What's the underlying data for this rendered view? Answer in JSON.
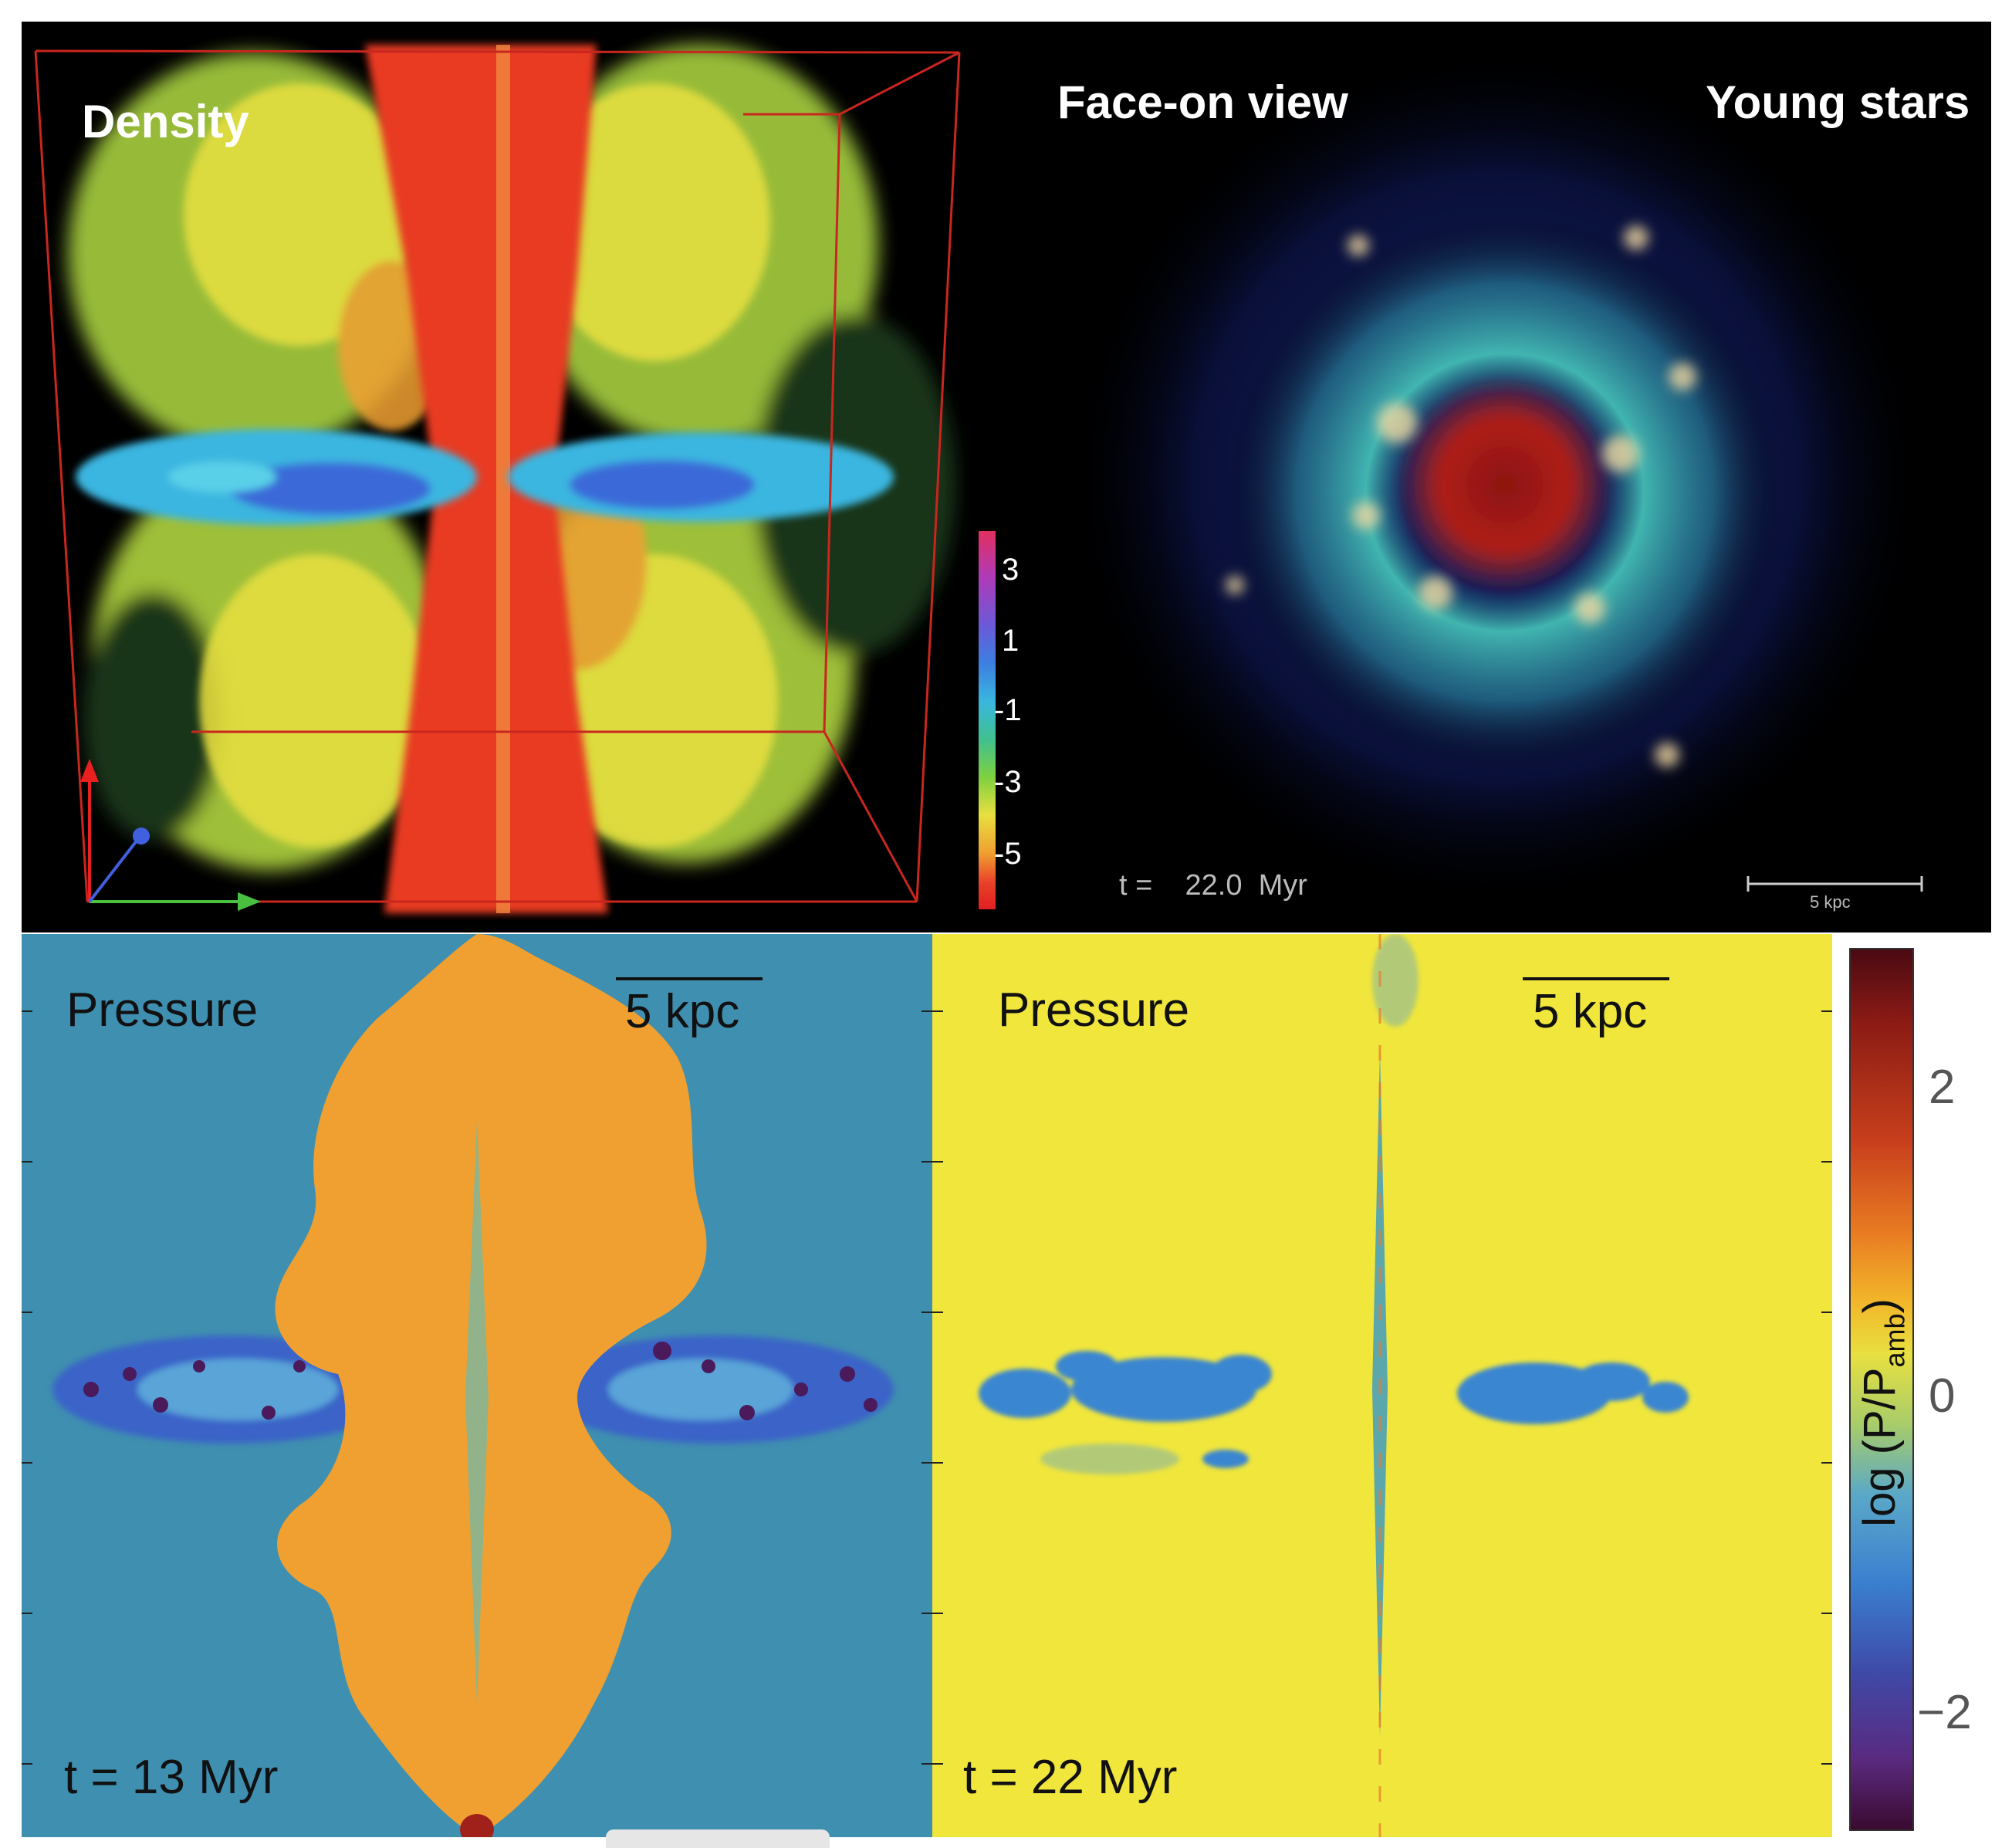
{
  "top_left": {
    "label": "Density",
    "colorbar": {
      "ticks": [
        "3",
        "1",
        "-1",
        "-3",
        "-5"
      ],
      "gradient": [
        "#e0305e",
        "#b03ab8",
        "#6a5ad8",
        "#3c7fe0",
        "#3ab6e0",
        "#40c090",
        "#7ed040",
        "#e8e040",
        "#f0a030",
        "#e8402a",
        "#e02020"
      ]
    }
  },
  "top_right": {
    "label_left": "Face-on view",
    "label_right": "Young stars",
    "time": "t =    22.0  Myr",
    "scale": "5 kpc"
  },
  "bottom_left": {
    "label": "Pressure",
    "scale": "5 kpc",
    "time": "t = 13 Myr"
  },
  "bottom_right": {
    "label": "Pressure",
    "scale": "5 kpc",
    "time": "t = 22 Myr"
  },
  "colorbar": {
    "label_main": "log (P/P",
    "label_sub": "amb",
    "label_end": ")",
    "ticks": [
      "2",
      "0",
      "−2"
    ],
    "gradient": [
      "#3a0a12",
      "#8a1a14",
      "#c8401c",
      "#e87a22",
      "#f2b62a",
      "#e8e040",
      "#a8cc6a",
      "#5aa8c8",
      "#3a7fcf",
      "#3e4aa8",
      "#5a2a80",
      "#3a0a30"
    ]
  }
}
